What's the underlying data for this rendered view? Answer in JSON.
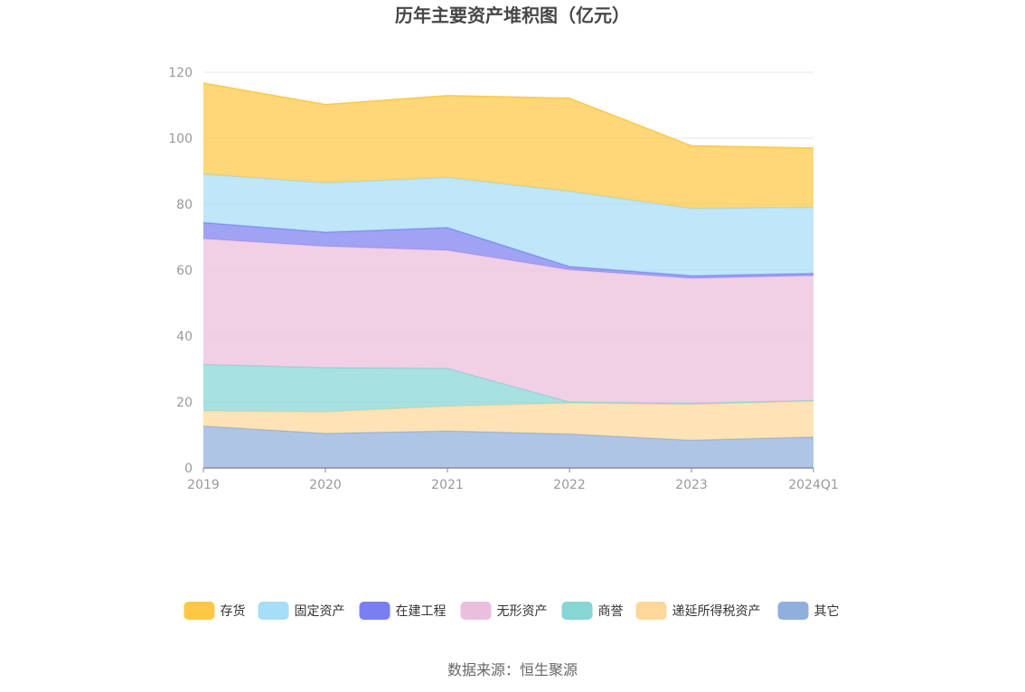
{
  "chart_data": {
    "type": "area",
    "stacked": true,
    "title": "历年主要资产堆积图（亿元）",
    "categories": [
      "2019",
      "2020",
      "2021",
      "2022",
      "2023",
      "2024Q1"
    ],
    "ylim": [
      0,
      120
    ],
    "yticks": [
      "0",
      "20",
      "40",
      "60",
      "80",
      "100",
      "120"
    ],
    "grid": true,
    "legend_position": "bottom",
    "series": [
      {
        "name": "其它",
        "color": "#8fafdc",
        "values": [
          12.7,
          10.5,
          11.2,
          10.3,
          8.4,
          9.4
        ]
      },
      {
        "name": "递延所得税资产",
        "color": "#fdd89a",
        "values": [
          4.6,
          6.5,
          7.5,
          9.4,
          10.9,
          10.9
        ]
      },
      {
        "name": "商誉",
        "color": "#87d6d6",
        "values": [
          14.1,
          13.4,
          11.5,
          0.3,
          0.3,
          0.2
        ]
      },
      {
        "name": "无形资产",
        "color": "#ebbedd",
        "values": [
          38.1,
          36.8,
          35.8,
          40.1,
          37.9,
          37.8
        ]
      },
      {
        "name": "在建工程",
        "color": "#7b7ef0",
        "values": [
          4.9,
          4.3,
          6.9,
          1.0,
          0.8,
          0.7
        ]
      },
      {
        "name": "固定资产",
        "color": "#a6ddf7",
        "values": [
          14.7,
          15.0,
          15.2,
          22.8,
          20.4,
          20.0
        ]
      },
      {
        "name": "存货",
        "color": "#fec844",
        "values": [
          27.6,
          23.7,
          24.8,
          28.2,
          19.0,
          18.0
        ]
      }
    ],
    "legend_order": [
      "存货",
      "固定资产",
      "在建工程",
      "无形资产",
      "商誉",
      "递延所得税资产",
      "其它"
    ]
  },
  "source": "数据来源：恒生聚源"
}
